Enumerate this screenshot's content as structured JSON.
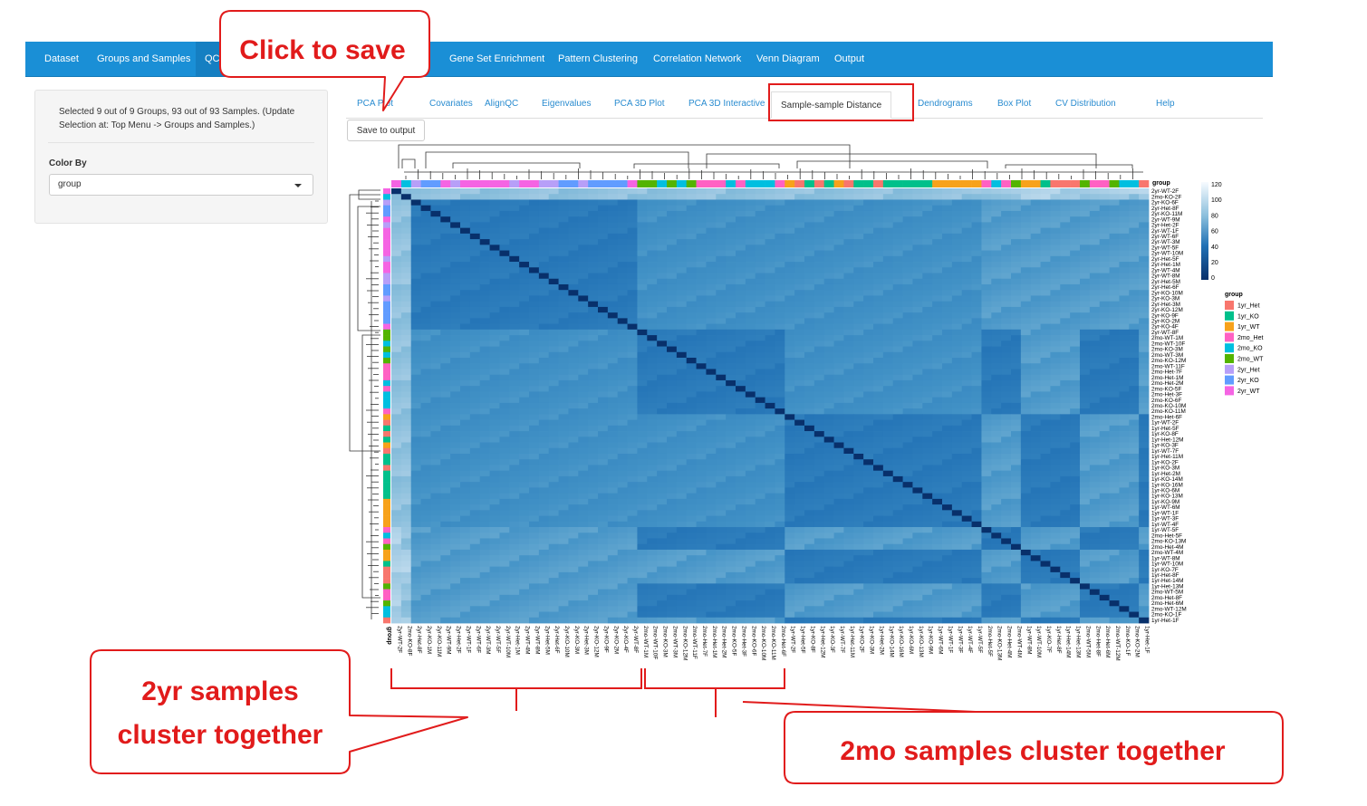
{
  "topnav": {
    "items": [
      {
        "label": "Dataset"
      },
      {
        "label": "Groups and Samples"
      },
      {
        "label": "QC"
      },
      {
        "label": "Gene Set Enrichment"
      },
      {
        "label": "Pattern Clustering"
      },
      {
        "label": "Correlation Network"
      },
      {
        "label": "Venn Diagram"
      },
      {
        "label": "Output"
      }
    ],
    "active_index": 2
  },
  "sidebar": {
    "selection_text": "Selected 9 out of 9 Groups, 93 out of 93 Samples. (Update Selection at: Top Menu -> Groups and Samples.)",
    "color_by_label": "Color By",
    "color_by_value": "group"
  },
  "subtabs": {
    "items": [
      {
        "label": "PCA Plot"
      },
      {
        "label": "Covariates"
      },
      {
        "label": "AlignQC"
      },
      {
        "label": "Eigenvalues"
      },
      {
        "label": "PCA 3D Plot"
      },
      {
        "label": "PCA 3D Interactive"
      },
      {
        "label": "Sample-sample Distance"
      },
      {
        "label": "Dendrograms"
      },
      {
        "label": "Box Plot"
      },
      {
        "label": "CV Distribution"
      },
      {
        "label": "Help"
      }
    ],
    "active_index": 6
  },
  "save_button_label": "Save to output",
  "heatmap": {
    "group_annotation_label": "group",
    "colorbar_ticks": [
      "120",
      "100",
      "80",
      "60",
      "40",
      "20",
      "0"
    ],
    "legend_title": "group",
    "legend": [
      {
        "label": "1yr_Het",
        "color": "#f8766d"
      },
      {
        "label": "1yr_KO",
        "color": "#00c08b"
      },
      {
        "label": "1yr_WT",
        "color": "#f7a21b"
      },
      {
        "label": "2mo_Het",
        "color": "#ff61c3"
      },
      {
        "label": "2mo_KO",
        "color": "#00bfe0"
      },
      {
        "label": "2mo_WT",
        "color": "#53b400"
      },
      {
        "label": "2yr_Het",
        "color": "#b79ff8"
      },
      {
        "label": "2yr_KO",
        "color": "#619cff"
      },
      {
        "label": "2yr_WT",
        "color": "#f564e3"
      }
    ],
    "row_labels": [
      "2yr-WT-2F",
      "2mo-KO-2F",
      "2yr-KO-6F",
      "2yr-Het-8F",
      "2yr-KO-11M",
      "2yr-WT-9M",
      "2yr-Het-2F",
      "2yr-WT-1F",
      "2yr-WT-6F",
      "2yr-WT-3M",
      "2yr-WT-5F",
      "2yr-WT-10M",
      "2yr-Het-5F",
      "2yr-Het-1M",
      "2yr-WT-4M",
      "2yr-WT-8M",
      "2yr-Het-5M",
      "2yr-Het-6F",
      "2yr-KO-10M",
      "2yr-KO-3M",
      "2yr-Het-3M",
      "2yr-KO-12M",
      "2yr-KO-9F",
      "2yr-KO-2M",
      "2yr-KO-4F",
      "2yr-WT-8F",
      "2mo-WT-1M",
      "2mo-WT-10F",
      "2mo-KO-3M",
      "2mo-WT-3M",
      "2mo-KO-12M",
      "2mo-WT-11F",
      "2mo-Het-7F",
      "2mo-Het-1M",
      "2mo-Het-2M",
      "2mo-KO-5F",
      "2mo-Het-3F",
      "2mo-KO-6F",
      "2mo-KO-10M",
      "2mo-KO-11M",
      "2mo-Het-6F",
      "1yr-WT-2F",
      "1yr-Het-5F",
      "1yr-KO-8F",
      "1yr-Het-12M",
      "1yr-KO-3F",
      "1yr-WT-7F",
      "1yr-Het-11M",
      "1yr-KO-2F",
      "1yr-KO-3M",
      "1yr-Het-2M",
      "1yr-KO-14M",
      "1yr-KO-16M",
      "1yr-KO-6M",
      "1yr-KO-13M",
      "1yr-KO-9M",
      "1yr-WT-6M",
      "1yr-WT-1F",
      "1yr-WT-3F",
      "1yr-WT-4F",
      "1yr-WT-5F",
      "2mo-Het-5F",
      "2mo-KO-13M",
      "2mo-Het-4M",
      "2mo-WT-4M",
      "1yr-WT-8M",
      "1yr-WT-10M",
      "1yr-KO-7F",
      "1yr-Het-8F",
      "1yr-Het-14M",
      "1yr-Het-13M",
      "2mo-WT-5M",
      "2mo-Het-8F",
      "2mo-Het-6M",
      "2mo-WT-12M",
      "2mo-KO-1F",
      "1yr-Het-1F"
    ],
    "col_labels": [
      "2yr-WT-2F",
      "2mo-KO-8F",
      "2yr-Het-8F",
      "2yr-KO-1M",
      "2yr-KO-11M",
      "2yr-WT-9M",
      "2yr-Het-2F",
      "2yr-WT-1F",
      "2yr-WT-6F",
      "2yr-WT-3M",
      "2yr-WT-5F",
      "2yr-WT-10M",
      "2yr-Het-1M",
      "2yr-WT-4M",
      "2yr-WT-8M",
      "2yr-Het-5M",
      "2yr-Het-6F",
      "2yr-KO-10M",
      "2yr-KO-3M",
      "2yr-Het-3M",
      "2yr-KO-12M",
      "2yr-KO-9F",
      "2yr-KO-2M",
      "2yr-KO-4F",
      "2yr-WT-8F",
      "2mo-WT-1M",
      "2mo-WT-10F",
      "2mo-KO-3M",
      "2mo-WT-3M",
      "2mo-KO-12M",
      "2mo-WT-11F",
      "2mo-Het-7F",
      "2mo-Het-1M",
      "2mo-Het-2M",
      "2mo-KO-5F",
      "2mo-Het-3F",
      "2mo-KO-6F",
      "2mo-KO-10M",
      "2mo-KO-11M",
      "2mo-Het-6F",
      "1yr-WT-2F",
      "1yr-Het-5F",
      "1yr-KO-8F",
      "1yr-Het-12M",
      "1yr-KO-3F",
      "1yr-WT-7F",
      "1yr-Het-11M",
      "1yr-KO-2F",
      "1yr-KO-3M",
      "1yr-Het-2M",
      "1yr-KO-14M",
      "1yr-KO-16M",
      "1yr-KO-6M",
      "1yr-KO-13M",
      "1yr-KO-9M",
      "1yr-WT-6M",
      "1yr-WT-1F",
      "1yr-WT-3F",
      "1yr-WT-4F",
      "1yr-WT-5F",
      "2mo-Het-5F",
      "2mo-KO-13M",
      "2mo-Het-4M",
      "2mo-WT-4M",
      "1yr-WT-8M",
      "1yr-WT-10M",
      "1yr-KO-7F",
      "1yr-Het-8F",
      "1yr-Het-14M",
      "1yr-Het-13M",
      "2mo-WT-5M",
      "2mo-Het-8F",
      "2mo-Het-6M",
      "2mo-WT-12M",
      "2mo-KO-1F",
      "2mo-KO-2M",
      "1yr-Het-1F"
    ],
    "annotation_groups": [
      "2yr_WT",
      "2mo_KO",
      "2yr_Het",
      "2yr_KO",
      "2yr_KO",
      "2yr_WT",
      "2yr_Het",
      "2yr_WT",
      "2yr_WT",
      "2yr_WT",
      "2yr_WT",
      "2yr_WT",
      "2yr_Het",
      "2yr_WT",
      "2yr_WT",
      "2yr_Het",
      "2yr_Het",
      "2yr_KO",
      "2yr_KO",
      "2yr_Het",
      "2yr_KO",
      "2yr_KO",
      "2yr_KO",
      "2yr_KO",
      "2yr_WT",
      "2mo_WT",
      "2mo_WT",
      "2mo_KO",
      "2mo_WT",
      "2mo_KO",
      "2mo_WT",
      "2mo_Het",
      "2mo_Het",
      "2mo_Het",
      "2mo_KO",
      "2mo_Het",
      "2mo_KO",
      "2mo_KO",
      "2mo_KO",
      "2mo_Het",
      "1yr_WT",
      "1yr_Het",
      "1yr_KO",
      "1yr_Het",
      "1yr_KO",
      "1yr_WT",
      "1yr_Het",
      "1yr_KO",
      "1yr_KO",
      "1yr_Het",
      "1yr_KO",
      "1yr_KO",
      "1yr_KO",
      "1yr_KO",
      "1yr_KO",
      "1yr_WT",
      "1yr_WT",
      "1yr_WT",
      "1yr_WT",
      "1yr_WT",
      "2mo_Het",
      "2mo_KO",
      "2mo_Het",
      "2mo_WT",
      "1yr_WT",
      "1yr_WT",
      "1yr_KO",
      "1yr_Het",
      "1yr_Het",
      "1yr_Het",
      "2mo_WT",
      "2mo_Het",
      "2mo_Het",
      "2mo_WT",
      "2mo_KO",
      "2mo_KO",
      "1yr_Het"
    ]
  },
  "callouts": {
    "save": "Click to save",
    "yr2_line1": "2yr samples",
    "yr2_line2": "cluster together",
    "mo2": "2mo samples cluster together"
  }
}
